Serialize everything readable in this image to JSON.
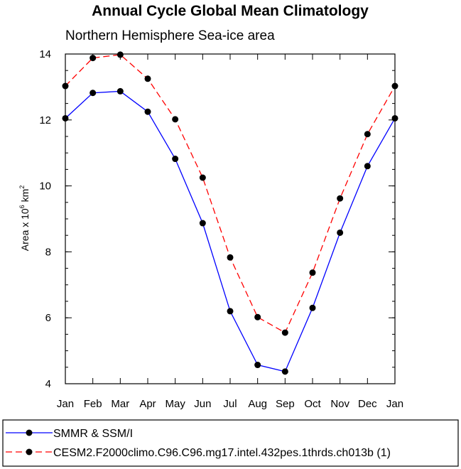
{
  "chart_data": {
    "type": "line",
    "title": "Annual Cycle Global Mean Climatology",
    "subtitle": "Northern Hemisphere Sea-ice area",
    "ylabel": {
      "prefix": "Area x 10",
      "exp1": "6",
      "mid": " km",
      "exp2": "2"
    },
    "xlabel": "",
    "categories": [
      "Jan",
      "Feb",
      "Mar",
      "Apr",
      "May",
      "Jun",
      "Jul",
      "Aug",
      "Sep",
      "Oct",
      "Nov",
      "Dec",
      "Jan"
    ],
    "ylim": [
      4,
      14
    ],
    "yticks": [
      4,
      6,
      8,
      10,
      12,
      14
    ],
    "yminor_step": 0.5,
    "series": [
      {
        "name": "SMMR & SSM/I",
        "color": "#0000ff",
        "dash": "solid",
        "values": [
          12.05,
          12.82,
          12.87,
          12.25,
          10.82,
          8.87,
          6.2,
          4.57,
          4.37,
          6.3,
          8.58,
          10.6,
          12.05
        ]
      },
      {
        "name": "CESM2.F2000climo.C96.C96.mg17.intel.432pes.1thrds.ch013b (1)",
        "color": "#ff0000",
        "dash": "dashed",
        "values": [
          13.03,
          13.88,
          13.98,
          13.25,
          12.02,
          10.25,
          7.83,
          6.02,
          5.55,
          7.37,
          9.62,
          11.57,
          13.03
        ]
      }
    ],
    "legend_position": "bottom",
    "marker_color": "#000000"
  }
}
